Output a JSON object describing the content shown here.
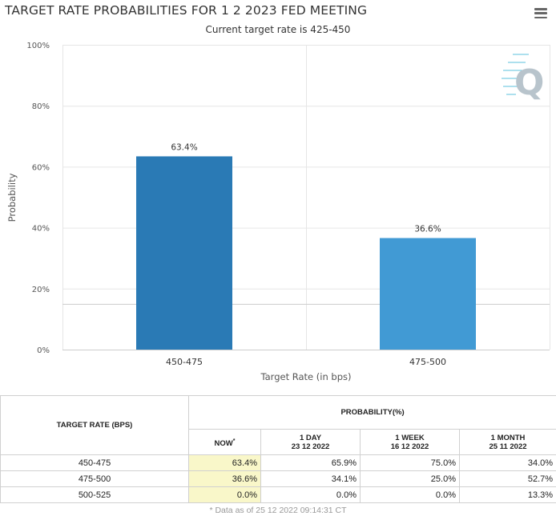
{
  "header": {
    "title": "TARGET RATE PROBABILITIES FOR 1 2 2023 FED MEETING",
    "subtitle": "Current target rate is 425-450"
  },
  "watermark": {
    "letter": "Q",
    "color": "#b8c4cc",
    "accent": "#5bc0de"
  },
  "chart_data": {
    "type": "bar",
    "title": "TARGET RATE PROBABILITIES FOR 1 2 2023 FED MEETING",
    "subtitle": "Current target rate is 425-450",
    "categories": [
      "450-475",
      "475-500"
    ],
    "values": [
      63.4,
      36.6
    ],
    "data_labels": [
      "63.4%",
      "36.6%"
    ],
    "colors": [
      "#2a7ab5",
      "#419ad4"
    ],
    "xlabel": "Target Rate (in bps)",
    "ylabel": "Probability",
    "ylim": [
      0,
      100
    ],
    "yticks": [
      0,
      20,
      40,
      60,
      80,
      100
    ],
    "ytick_labels": [
      "0%",
      "20%",
      "40%",
      "60%",
      "80%",
      "100%"
    ],
    "reference_line": 15,
    "grid": true,
    "legend": "none"
  },
  "table": {
    "rate_header": "TARGET RATE (BPS)",
    "prob_header": "PROBABILITY(%)",
    "columns": [
      {
        "label": "NOW",
        "marker": "*",
        "date": ""
      },
      {
        "label": "1 DAY",
        "date": "23 12 2022"
      },
      {
        "label": "1 WEEK",
        "date": "16 12 2022"
      },
      {
        "label": "1 MONTH",
        "date": "25 11 2022"
      }
    ],
    "rows": [
      {
        "rate": "450-475",
        "now": "63.4%",
        "day": "65.9%",
        "week": "75.0%",
        "month": "34.0%"
      },
      {
        "rate": "475-500",
        "now": "36.6%",
        "day": "34.1%",
        "week": "25.0%",
        "month": "52.7%"
      },
      {
        "rate": "500-525",
        "now": "0.0%",
        "day": "0.0%",
        "week": "0.0%",
        "month": "13.3%"
      }
    ],
    "footnote": "* Data as of 25 12 2022 09:14:31 CT"
  }
}
